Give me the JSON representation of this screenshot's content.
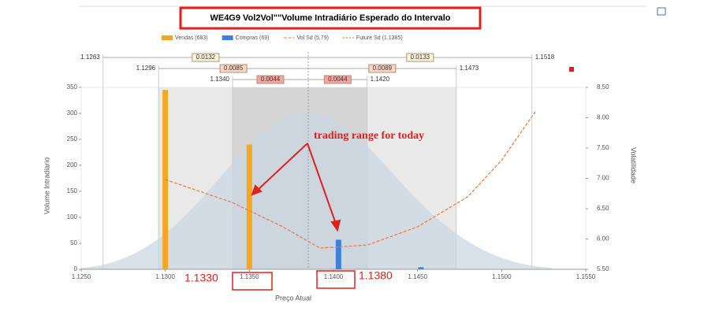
{
  "chart_data": {
    "type": "bar",
    "title": "WE4G9 Vol2Vol\"\"Volume Intradiário Esperado do Intervalo",
    "x_label": "Preço Atual",
    "y_label": "Volume Intradiario",
    "y2_label": "Volatilidade",
    "xlim": [
      1.125,
      1.155
    ],
    "xticks": [
      {
        "value": 1.125,
        "label": "1.1250"
      },
      {
        "value": 1.13,
        "label": "1.1300"
      },
      {
        "value": 1.135,
        "label": "1.1350"
      },
      {
        "value": 1.14,
        "label": "1.1400"
      },
      {
        "value": 1.145,
        "label": "1.1450"
      },
      {
        "value": 1.15,
        "label": "1.1500"
      },
      {
        "value": 1.155,
        "label": "1.1550"
      }
    ],
    "ylim": [
      0,
      350
    ],
    "yticks": [
      0,
      50,
      100,
      150,
      200,
      250,
      300,
      350
    ],
    "y2lim": [
      5.5,
      8.5
    ],
    "y2ticks": [
      {
        "value": 5.5,
        "label": "5.50"
      },
      {
        "value": 6,
        "label": "6.00"
      },
      {
        "value": 6.5,
        "label": "6.50"
      },
      {
        "value": 7,
        "label": "7.00"
      },
      {
        "value": 7.5,
        "label": "7.50"
      },
      {
        "value": 8,
        "label": "8.00"
      },
      {
        "value": 8.5,
        "label": "8.50"
      }
    ],
    "series": [
      {
        "name": "Vendas (683)",
        "color": "#f5a623",
        "x": [
          1.13,
          1.135
        ],
        "values": [
          345,
          240
        ]
      },
      {
        "name": "Compras (69)",
        "color": "#3b82e0",
        "x": [
          1.1403,
          1.1452
        ],
        "values": [
          57,
          4
        ]
      },
      {
        "name": "Vol Sd (5,79)",
        "color": "#f07838",
        "axis": "y2",
        "x": [
          1.13,
          1.134,
          1.137,
          1.1392,
          1.142,
          1.145,
          1.148,
          1.15,
          1.152
        ],
        "values": [
          6.98,
          6.6,
          6.2,
          5.85,
          5.9,
          6.2,
          6.7,
          7.3,
          8.1
        ]
      },
      {
        "name": "Future Sd (1.1385)",
        "color": "#e06020",
        "x": 1.1385
      }
    ],
    "ranges": [
      {
        "low": 1.1263,
        "high": 1.1518,
        "left": 0.0132,
        "right": 0.0133,
        "color": "#fff6dc"
      },
      {
        "low": 1.1296,
        "high": 1.1473,
        "left": 0.0085,
        "right": 0.0089,
        "color": "#fbd6c4"
      },
      {
        "low": {
          "value": 1.134,
          "label": "1.1340"
        },
        "high": {
          "value": 1.142,
          "label": "1.1420"
        },
        "left": 0.0044,
        "right": 0.0044,
        "color": "#f4a4a4"
      }
    ],
    "annotations": [
      "trading range for today",
      "1.1330",
      "1.1380"
    ]
  }
}
